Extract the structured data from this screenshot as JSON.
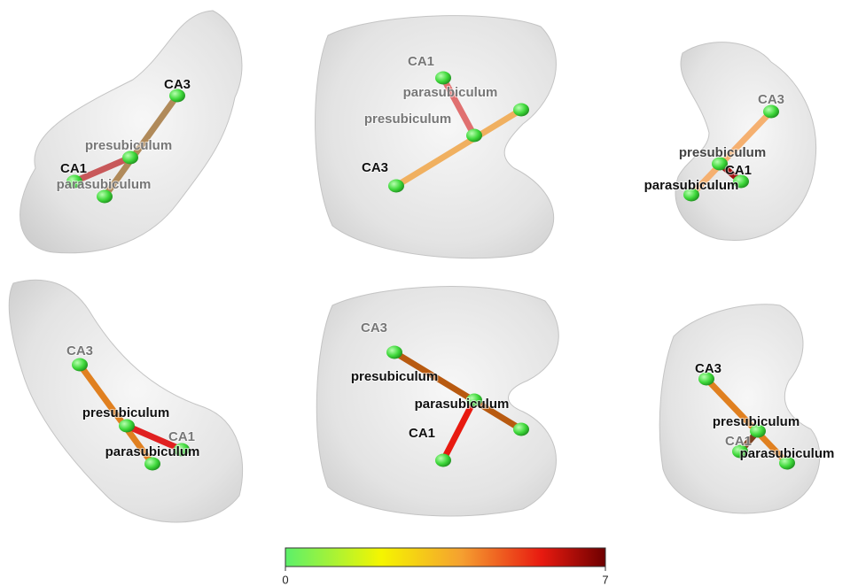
{
  "panels": [
    {
      "labels": [
        "CA3",
        "presubiculum",
        "CA1",
        "parasubiculum"
      ]
    },
    {
      "labels": [
        "CA1",
        "parasubiculum",
        "presubiculum",
        "CA3"
      ]
    },
    {
      "labels": [
        "CA3",
        "presubiculum",
        "CA1",
        "parasubiculum"
      ]
    },
    {
      "labels": [
        "CA3",
        "presubiculum",
        "CA1",
        "parasubiculum"
      ]
    },
    {
      "labels": [
        "CA3",
        "presubiculum",
        "parasubiculum",
        "CA1"
      ]
    },
    {
      "labels": [
        "CA3",
        "presubiculum",
        "CA1",
        "parasubiculum"
      ]
    }
  ],
  "colorbar": {
    "lim": [
      0,
      7
    ],
    "ticks": [
      0,
      7
    ]
  }
}
